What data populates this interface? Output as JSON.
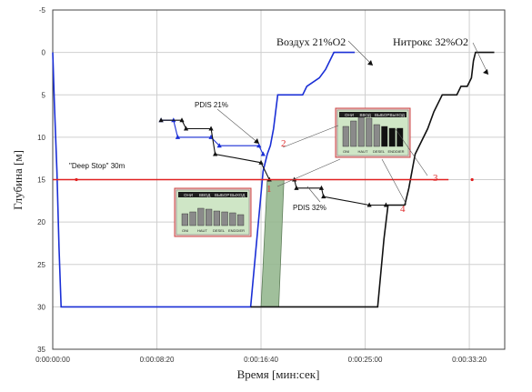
{
  "chart_data": {
    "type": "line",
    "title": "",
    "xlabel": "Время [мин:сек]",
    "ylabel": "Глубина [м]",
    "x_ticks": [
      "0:00:00:00",
      "0:00:08:20",
      "0:00:16:40",
      "0:00:25:00",
      "0:00:33:20"
    ],
    "x_tick_values_sec": [
      0,
      500,
      1000,
      1500,
      2000
    ],
    "y_ticks": [
      "-5",
      "0",
      "5",
      "10",
      "15",
      "20",
      "25",
      "30",
      "35"
    ],
    "y_tick_values": [
      -5,
      0,
      5,
      10,
      15,
      20,
      25,
      30,
      35
    ],
    "xlim_sec": [
      0,
      2170
    ],
    "ylim": [
      -5,
      35
    ],
    "y_inverted": true,
    "grid": true,
    "series": [
      {
        "name": "Воздух 21%O2",
        "color": "#1a2fd6",
        "points": [
          [
            0,
            0
          ],
          [
            8,
            6
          ],
          [
            20,
            14
          ],
          [
            30,
            23
          ],
          [
            40,
            30
          ],
          [
            950,
            30
          ],
          [
            1010,
            14
          ],
          [
            1030,
            12
          ],
          [
            1045,
            11
          ],
          [
            1060,
            9
          ],
          [
            1080,
            5
          ],
          [
            1200,
            5
          ],
          [
            1220,
            4
          ],
          [
            1280,
            3
          ],
          [
            1310,
            2
          ],
          [
            1350,
            0
          ],
          [
            1450,
            0
          ]
        ]
      },
      {
        "name": "Нитрокс 32%O2",
        "color": "#111111",
        "points": [
          [
            950,
            30
          ],
          [
            1560,
            30
          ],
          [
            1590,
            22
          ],
          [
            1610,
            18
          ],
          [
            1690,
            18
          ],
          [
            1710,
            16
          ],
          [
            1740,
            12
          ],
          [
            1800,
            9
          ],
          [
            1830,
            7
          ],
          [
            1870,
            5
          ],
          [
            1940,
            5
          ],
          [
            1960,
            4
          ],
          [
            1990,
            4
          ],
          [
            2010,
            3
          ],
          [
            2020,
            1
          ],
          [
            2030,
            0
          ],
          [
            2120,
            0
          ]
        ]
      },
      {
        "name": "PDIS 21%",
        "color": "#1a2fd6",
        "marker": "triangle",
        "points": [
          [
            520,
            8
          ],
          [
            580,
            8
          ],
          [
            600,
            10
          ],
          [
            760,
            10
          ],
          [
            800,
            11
          ],
          [
            990,
            11
          ],
          [
            1010,
            12
          ]
        ]
      },
      {
        "name": "PDIS 32%",
        "color": "#111111",
        "marker": "triangle",
        "points": [
          [
            520,
            8
          ],
          [
            620,
            8
          ],
          [
            640,
            9
          ],
          [
            760,
            9
          ],
          [
            780,
            12
          ],
          [
            1000,
            13
          ],
          [
            1040,
            15
          ],
          [
            1160,
            15
          ],
          [
            1170,
            16
          ],
          [
            1290,
            16
          ],
          [
            1300,
            17
          ],
          [
            1520,
            18
          ],
          [
            1600,
            18
          ]
        ]
      },
      {
        "name": "\"Deep Stop\" 30m",
        "color": "#e02020",
        "points": [
          [
            0,
            15
          ],
          [
            1900,
            15
          ]
        ]
      }
    ],
    "annotations": [
      {
        "text": "Воздух 21%O2"
      },
      {
        "text": "Нитрокс 32%O2"
      },
      {
        "text": "PDIS 21%"
      },
      {
        "text": "PDIS 32%"
      },
      {
        "text": "\"Deep Stop\" 30m"
      },
      {
        "text": "1"
      },
      {
        "text": "2"
      },
      {
        "text": "3"
      },
      {
        "text": "4"
      }
    ],
    "inset_labels": [
      "ОНИ",
      "ВВОД",
      "ВЫБОР",
      "ВЫХОД"
    ],
    "inset_bottom_labels": [
      "ONI",
      "HAUT",
      "DESEL",
      "ENDDIER"
    ],
    "shaded_region_color": "#8fb48a"
  }
}
